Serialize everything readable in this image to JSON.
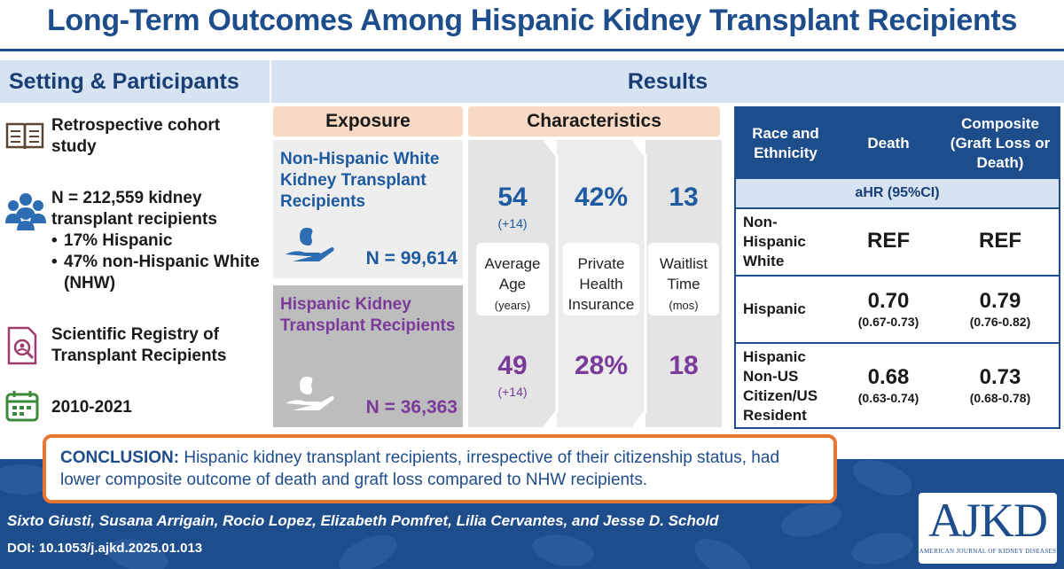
{
  "title": "Long-Term Outcomes Among Hispanic Kidney Transplant Recipients",
  "setting": {
    "header": "Setting & Participants",
    "items": [
      {
        "icon": "book-icon",
        "text": "Retrospective cohort study"
      },
      {
        "icon": "people-icon",
        "text": "N = 212,559 kidney transplant recipients",
        "bullets": [
          "17% Hispanic",
          "47% non-Hispanic White (NHW)"
        ]
      },
      {
        "icon": "registry-search-icon",
        "text": "Scientific Registry of Transplant Recipients"
      },
      {
        "icon": "calendar-icon",
        "text": "2010-2021"
      }
    ]
  },
  "results": {
    "header": "Results",
    "exposure_header": "Exposure",
    "characteristics_header": "Characteristics",
    "groups": [
      {
        "label": "Non-Hispanic White Kidney Transplant Recipients",
        "n": "N = 99,614",
        "age": "54",
        "age_sd": "(+14)",
        "insurance": "42%",
        "waitlist": "13"
      },
      {
        "label": "Hispanic Kidney Transplant Recipients",
        "n": "N = 36,363",
        "age": "49",
        "age_sd": "(+14)",
        "insurance": "28%",
        "waitlist": "18"
      }
    ],
    "char_labels": [
      {
        "main": "Average Age",
        "unit": "(years)"
      },
      {
        "main": "Private Health Insurance",
        "unit": ""
      },
      {
        "main": "Waitlist Time",
        "unit": "(mos)"
      }
    ],
    "table": {
      "col_headers": [
        "Race and Ethnicity",
        "Death",
        "Composite (Graft Loss or Death)"
      ],
      "subheader": "aHR (95%CI)",
      "rows": [
        {
          "label": "Non-Hispanic White",
          "death": "REF",
          "death_ci": "",
          "composite": "REF",
          "composite_ci": ""
        },
        {
          "label": "Hispanic",
          "death": "0.70",
          "death_ci": "(0.67-0.73)",
          "composite": "0.79",
          "composite_ci": "(0.76-0.82)"
        },
        {
          "label": "Hispanic Non-US Citizen/US Resident",
          "death": "0.68",
          "death_ci": "(0.63-0.74)",
          "composite": "0.73",
          "composite_ci": "(0.68-0.78)"
        }
      ]
    }
  },
  "conclusion": {
    "label": "CONCLUSION:",
    "text": "Hispanic kidney transplant recipients, irrespective of their citizenship status, had lower composite outcome of death and graft loss compared to NHW recipients."
  },
  "authors": "Sixto Giusti, Susana Arrigain, Rocio Lopez, Elizabeth Pomfret, Lilia Cervantes, and Jesse D. Schold",
  "doi": "DOI: 10.1053/j.ajkd.2025.01.013",
  "logo": {
    "word": "AJKD",
    "sub": "AMERICAN JOURNAL OF KIDNEY DISEASES"
  },
  "colors": {
    "navy": "#1e4d8c",
    "light_blue": "#d5e3f3",
    "peach": "#f8d9c4",
    "orange": "#e87733",
    "purple": "#7a3a9a",
    "blue_text": "#1e5aa0"
  }
}
